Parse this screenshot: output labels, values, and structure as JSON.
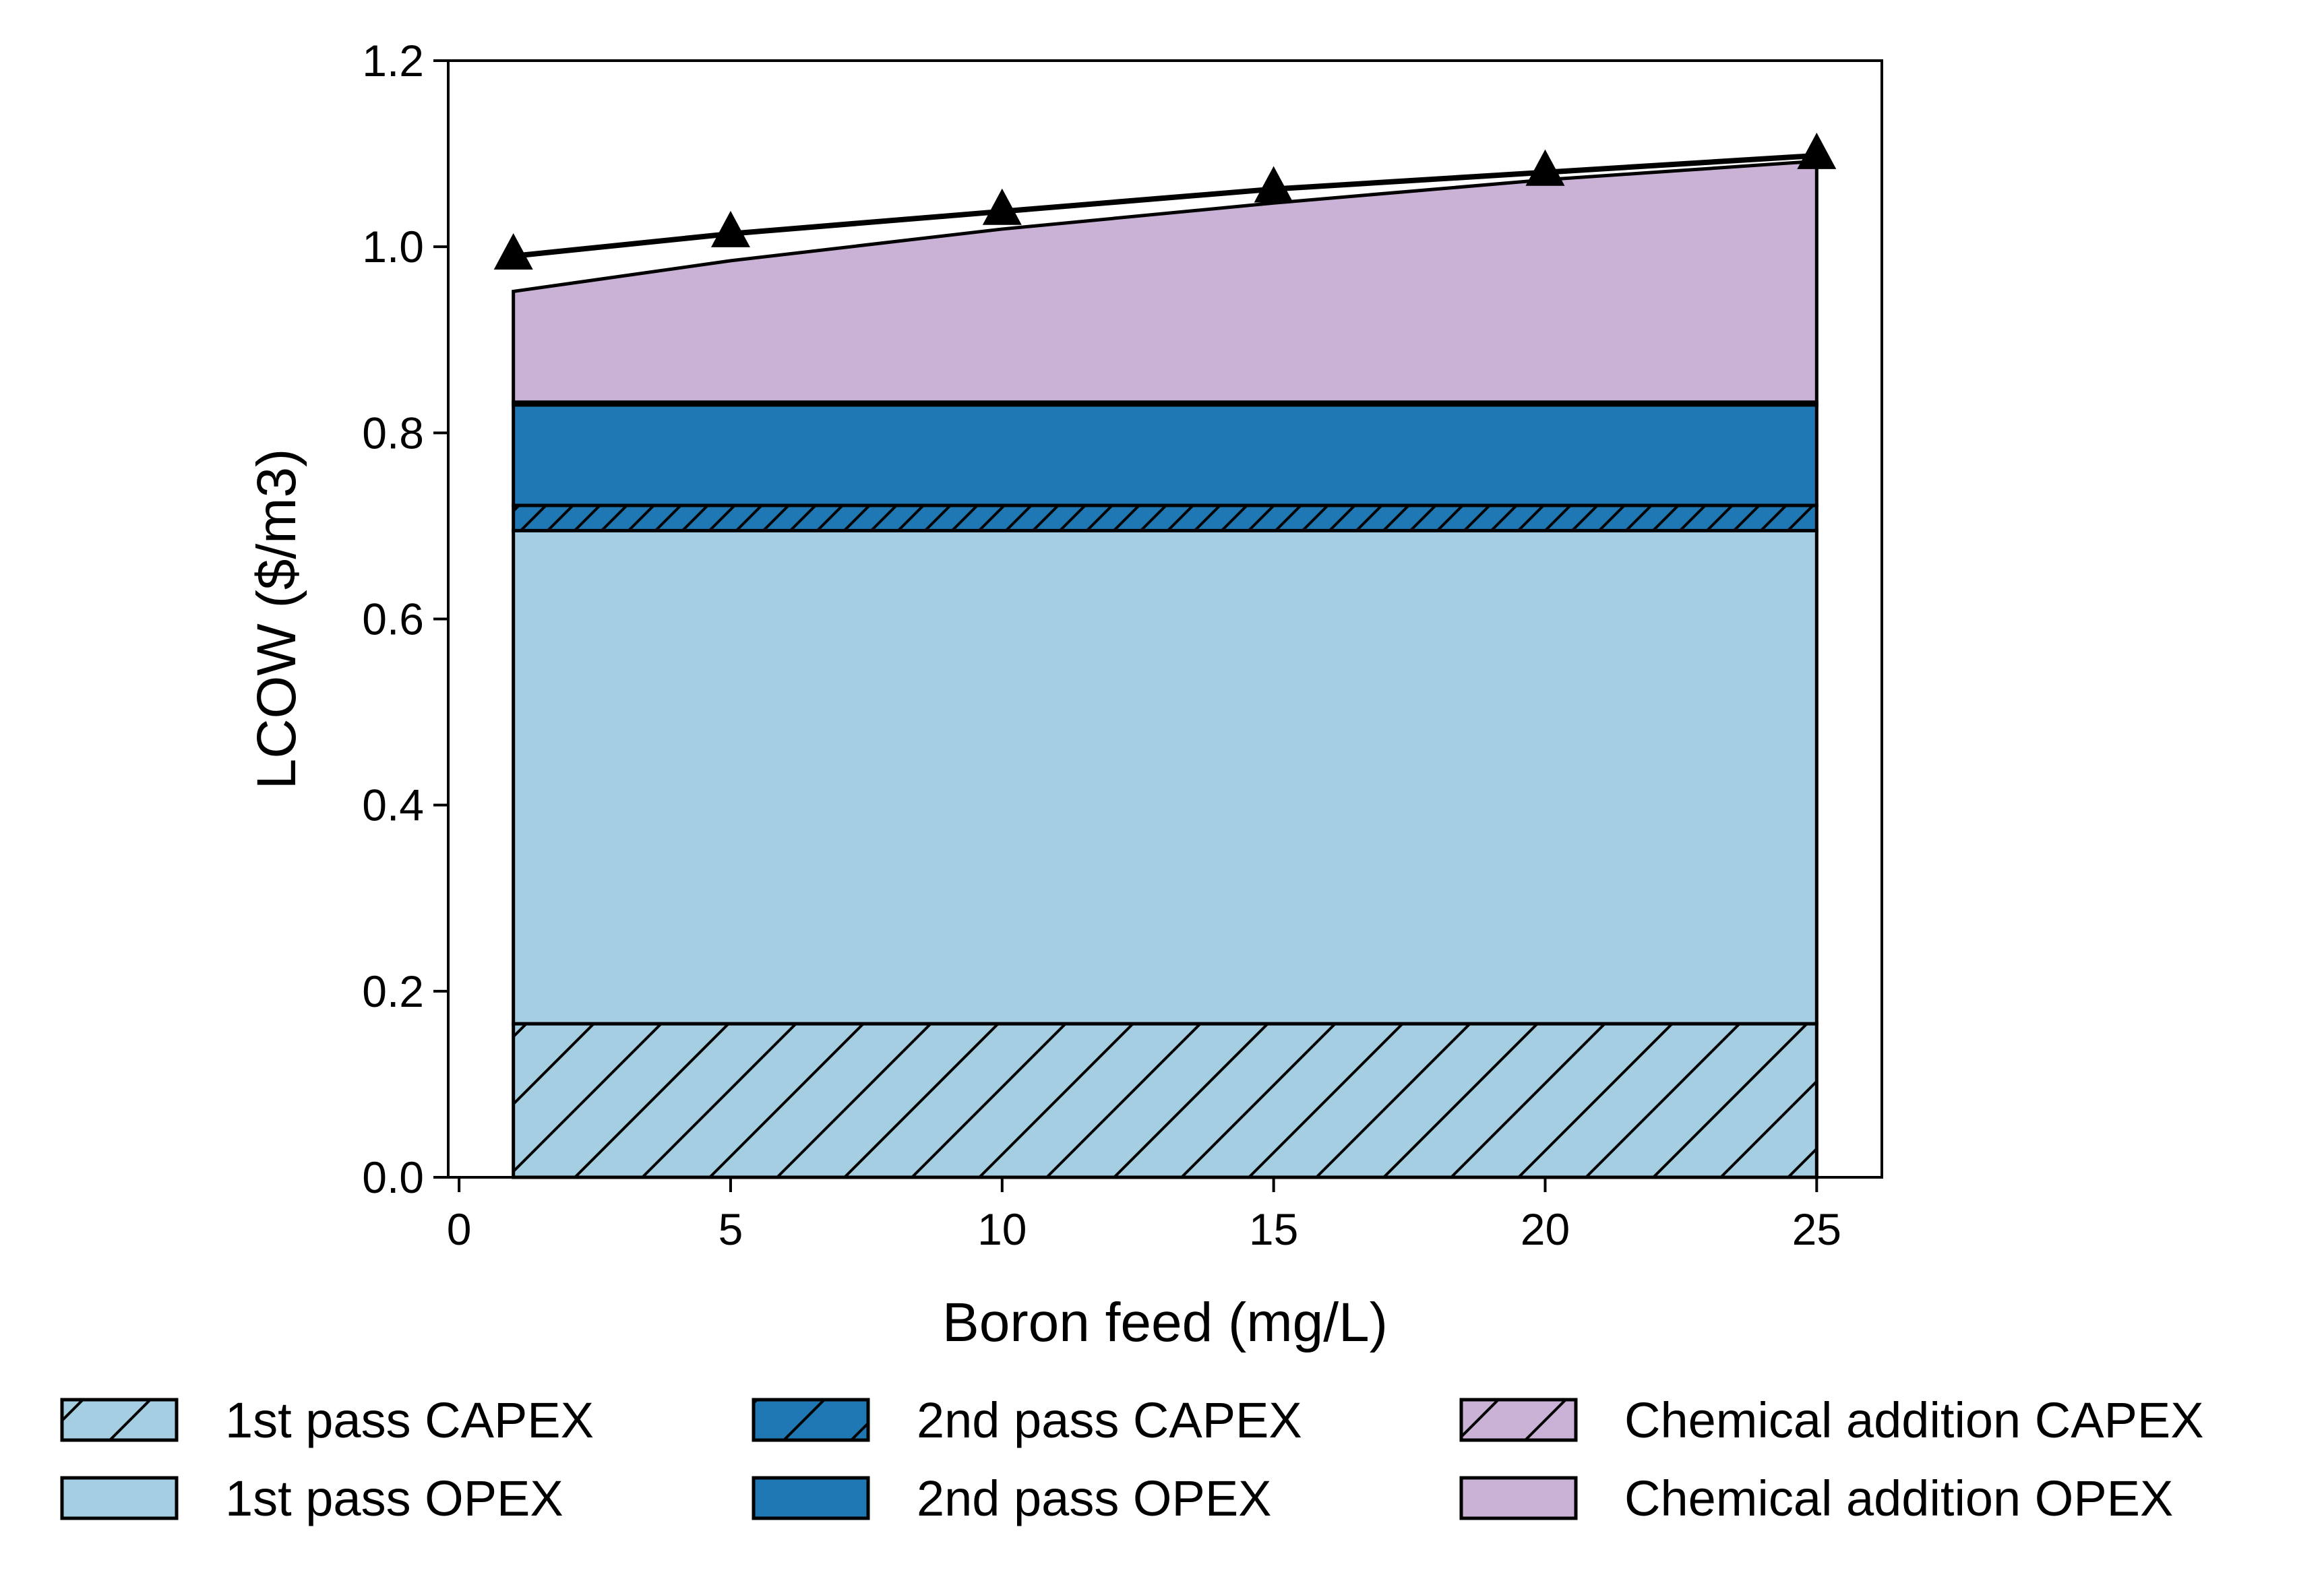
{
  "chart_data": {
    "type": "area",
    "xlabel": "Boron feed (mg/L)",
    "ylabel": "LCOW ($/m3)",
    "xlim": [
      -0.2,
      26.2
    ],
    "ylim": [
      0,
      1.2
    ],
    "xticks": [
      0,
      5,
      10,
      15,
      20,
      25
    ],
    "yticks": [
      0.0,
      0.2,
      0.4,
      0.6,
      0.8,
      1.0,
      1.2
    ],
    "ytick_labels": [
      "0.0",
      "0.2",
      "0.4",
      "0.6",
      "0.8",
      "1.0",
      "1.2"
    ],
    "grid": false,
    "legend_position": "bottom",
    "x": [
      1,
      5,
      10,
      15,
      20,
      25
    ],
    "stacked_series": [
      {
        "name": "1st pass CAPEX",
        "hatch": true,
        "color": "#a6cee3",
        "values": [
          0.165,
          0.165,
          0.165,
          0.165,
          0.165,
          0.165
        ]
      },
      {
        "name": "1st pass OPEX",
        "hatch": false,
        "color": "#a6cee3",
        "values": [
          0.53,
          0.53,
          0.53,
          0.53,
          0.53,
          0.53
        ]
      },
      {
        "name": "2nd pass CAPEX",
        "hatch": true,
        "color": "#1f78b4",
        "values": [
          0.027,
          0.027,
          0.027,
          0.027,
          0.027,
          0.027
        ]
      },
      {
        "name": "2nd pass OPEX",
        "hatch": false,
        "color": "#1f78b4",
        "values": [
          0.108,
          0.108,
          0.108,
          0.108,
          0.108,
          0.108
        ]
      },
      {
        "name": "Chemical addition CAPEX",
        "hatch": true,
        "color": "#cab2d6",
        "values": [
          0.003,
          0.003,
          0.003,
          0.003,
          0.003,
          0.003
        ]
      },
      {
        "name": "Chemical addition OPEX",
        "hatch": false,
        "color": "#cab2d6",
        "values": [
          0.119,
          0.152,
          0.186,
          0.214,
          0.239,
          0.259
        ]
      }
    ],
    "total_line": {
      "marker": "triangle",
      "color": "#000000",
      "values": [
        0.99,
        1.014,
        1.038,
        1.062,
        1.08,
        1.098
      ]
    }
  }
}
